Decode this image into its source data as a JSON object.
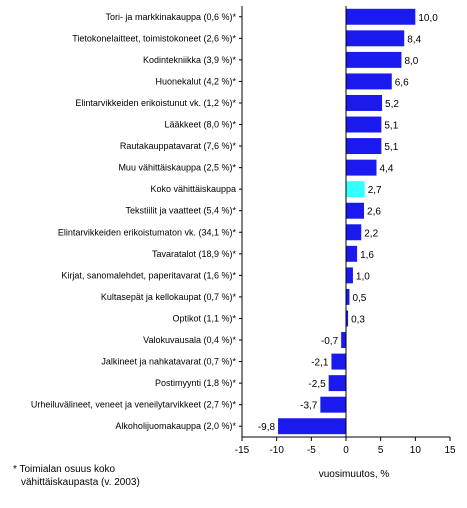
{
  "chart_data": {
    "type": "bar",
    "orientation": "horizontal",
    "categories": [
      "Tori- ja markkinakauppa (0,6 %)*",
      "Tietokonelaitteet, toimistokoneet (2,6 %)*",
      "Kodintekniikka (3,9 %)*",
      "Huonekalut (4,2 %)*",
      "Elintarvikkeiden erikoistunut vk. (1,2 %)*",
      "Lääkkeet (8,0 %)*",
      "Rautakauppatavarat (7,6 %)*",
      "Muu vähittäiskauppa (2,5 %)*",
      "Koko vähittäiskauppa",
      "Tekstiilit ja vaatteet (5,4 %)*",
      "Elintarvikkeiden erikoistumaton vk. (34,1 %)*",
      "Tavaratalot (18,9 %)*",
      "Kirjat, sanomalehdet, paperitavarat (1,6 %)*",
      "Kultasepät ja kellokaupat (0,7 %)*",
      "Optikot (1,1 %)*",
      "Valokuvausala (0,4 %)*",
      "Jalkineet ja nahkatavarat (0,7 %)*",
      "Postimyynti (1,8 %)*",
      "Urheiluvälineet, veneet ja veneilytarvikkeet (2,7 %)*",
      "Alkoholijuomakauppa (2,0 %)*"
    ],
    "values": [
      10.0,
      8.4,
      8.0,
      6.6,
      5.2,
      5.1,
      5.1,
      4.4,
      2.7,
      2.6,
      2.2,
      1.6,
      1.0,
      0.5,
      0.3,
      -0.7,
      -2.1,
      -2.5,
      -3.7,
      -9.8
    ],
    "value_labels": [
      "10,0",
      "8,4",
      "8,0",
      "6,6",
      "5,2",
      "5,1",
      "5,1",
      "4,4",
      "2,7",
      "2,6",
      "2,2",
      "1,6",
      "1,0",
      "0,5",
      "0,3",
      "-0,7",
      "-2,1",
      "-2,5",
      "-3,7",
      "-9,8"
    ],
    "highlight_index": 8,
    "xlabel": "vuosimuutos, %",
    "xlim": [
      -15,
      15
    ],
    "xticks": [
      -15,
      -10,
      -5,
      0,
      5,
      10,
      15
    ],
    "xtick_labels": [
      "-15",
      "-10",
      "-5",
      "0",
      "5",
      "10",
      "15"
    ],
    "grid": false,
    "colors": {
      "bar": "#1a1aee",
      "highlight": "#33ffff",
      "axis": "#000000"
    }
  },
  "footnote": {
    "line1": "* Toimialan osuus koko",
    "line2": "vähittäiskaupasta (v. 2003)"
  }
}
